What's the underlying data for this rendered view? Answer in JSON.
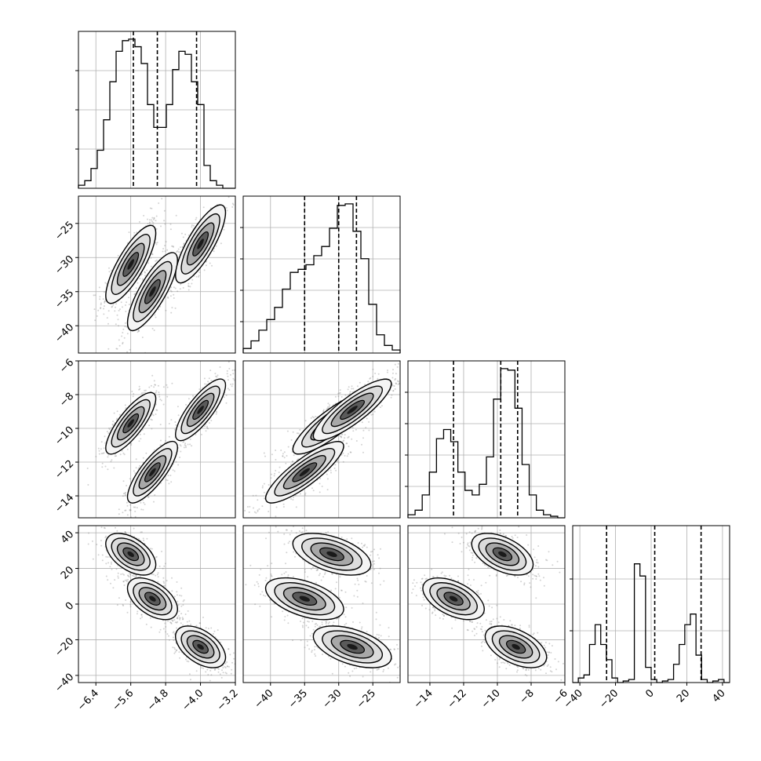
{
  "chart_data": {
    "type": "corner",
    "grid": true,
    "colors": {
      "hist": "#000000",
      "quantile": "#000000",
      "points": "#808080",
      "contour": "#000000"
    },
    "parameters": [
      {
        "range": [
          -6.8,
          -3.2
        ],
        "ticks": [
          -6.4,
          -5.6,
          -4.8,
          -4.0,
          -3.2
        ],
        "tick_labels": [
          "−6.4",
          "−5.6",
          "−4.8",
          "−4.0",
          "−3.2"
        ],
        "quantiles": [
          -5.54,
          -4.99,
          -4.09
        ]
      },
      {
        "range": [
          -44,
          -21
        ],
        "ticks": [
          -40,
          -35,
          -30,
          -25
        ],
        "tick_labels": [
          "−40",
          "−35",
          "−30",
          "−25"
        ],
        "quantiles": [
          -35.0,
          -30.0,
          -27.4
        ]
      },
      {
        "range": [
          -15.3,
          -6
        ],
        "ticks": [
          -14,
          -12,
          -10,
          -8,
          -6
        ],
        "tick_labels": [
          "−14",
          "−12",
          "−10",
          "−8",
          "−6"
        ],
        "quantiles": [
          -12.6,
          -9.8,
          -8.8
        ]
      },
      {
        "range": [
          -44,
          44
        ],
        "ticks": [
          -40,
          -20,
          0,
          20,
          40
        ],
        "tick_labels": [
          "−40",
          "−20",
          "0",
          "20",
          "40"
        ],
        "quantiles": [
          -25,
          2,
          28
        ]
      }
    ],
    "modes": [
      {
        "weight": 0.35,
        "mean": [
          -5.6,
          -31.0,
          -9.7,
          28.0
        ]
      },
      {
        "weight": 0.33,
        "mean": [
          -5.1,
          -35.0,
          -12.6,
          3.0
        ]
      },
      {
        "weight": 0.32,
        "mean": [
          -4.0,
          -28.0,
          -8.9,
          -24.0
        ]
      }
    ],
    "histograms": [
      {
        "bins": 25,
        "counts": [
          0.02,
          0.05,
          0.13,
          0.25,
          0.45,
          0.7,
          0.9,
          0.97,
          0.98,
          0.93,
          0.82,
          0.55,
          0.4,
          0.4,
          0.55,
          0.78,
          0.9,
          0.88,
          0.7,
          0.55,
          0.15,
          0.05,
          0.02,
          0,
          0
        ]
      },
      {
        "bins": 20,
        "counts": [
          0.03,
          0.08,
          0.15,
          0.22,
          0.3,
          0.42,
          0.53,
          0.55,
          0.58,
          0.64,
          0.7,
          0.82,
          0.97,
          0.98,
          0.8,
          0.62,
          0.32,
          0.12,
          0.05,
          0.02
        ]
      },
      {
        "bins": 22,
        "counts": [
          0.02,
          0.05,
          0.15,
          0.3,
          0.52,
          0.58,
          0.5,
          0.3,
          0.18,
          0.15,
          0.22,
          0.4,
          0.78,
          0.98,
          0.97,
          0.72,
          0.35,
          0.15,
          0.05,
          0.02,
          0.01,
          0
        ]
      },
      {
        "bins": 28,
        "counts": [
          0,
          0.03,
          0.05,
          0.25,
          0.38,
          0.25,
          0.15,
          0.03,
          0,
          0.01,
          0.02,
          0.78,
          0.7,
          0.1,
          0.02,
          0,
          0.01,
          0.02,
          0.12,
          0.25,
          0.38,
          0.45,
          0.18,
          0.02,
          0,
          0.01,
          0.02,
          0
        ]
      }
    ],
    "hist_ticks": [
      [
        0.25,
        0.5,
        0.75
      ],
      [
        0.2,
        0.4,
        0.6,
        0.8
      ],
      [
        0.2,
        0.4,
        0.6,
        0.8
      ],
      [
        0.33,
        0.66
      ]
    ],
    "hist_ylim_scale": [
      1.0,
      1.0,
      1.0,
      1.0
    ]
  }
}
